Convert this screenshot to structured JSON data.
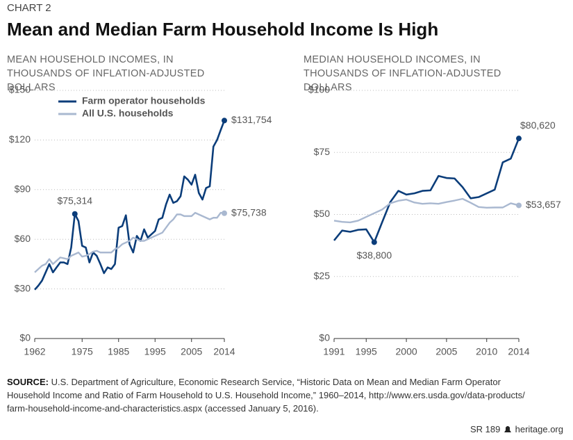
{
  "header": {
    "label": "CHART 2",
    "title": "Mean and Median Farm Household Income Is High"
  },
  "chart_data": [
    {
      "type": "line",
      "subtitle": "MEAN HOUSEHOLD INCOMES, IN THOUSANDS OF INFLATION-ADJUSTED DOLLARS",
      "x": [
        1962,
        1963,
        1964,
        1965,
        1966,
        1967,
        1968,
        1969,
        1970,
        1971,
        1972,
        1973,
        1974,
        1975,
        1976,
        1977,
        1978,
        1979,
        1980,
        1981,
        1982,
        1983,
        1984,
        1985,
        1986,
        1987,
        1988,
        1989,
        1990,
        1991,
        1992,
        1993,
        1994,
        1995,
        1996,
        1997,
        1998,
        1999,
        2000,
        2001,
        2002,
        2003,
        2004,
        2005,
        2006,
        2007,
        2008,
        2009,
        2010,
        2011,
        2012,
        2013,
        2014
      ],
      "series": [
        {
          "name": "Farm operator households",
          "color": "#0b3d7a",
          "values": [
            29.5,
            32,
            35,
            40,
            45,
            40,
            43,
            46,
            46,
            45,
            55,
            75.314,
            71,
            56,
            55,
            46,
            52,
            50,
            45,
            39.5,
            43,
            42,
            45,
            67,
            68,
            74.5,
            57,
            52,
            62,
            59,
            66,
            61,
            63,
            65,
            72,
            73,
            81,
            87,
            82,
            83,
            86,
            98,
            96,
            93,
            99,
            88,
            84,
            91,
            92,
            116,
            120,
            126,
            131.754
          ]
        },
        {
          "name": "All U.S. households",
          "color": "#a9b8d0",
          "values": [
            40,
            42,
            44,
            45,
            48,
            45,
            47,
            49,
            48.5,
            48,
            50,
            51,
            52,
            49.5,
            50,
            51,
            52.5,
            53,
            52,
            52,
            52,
            52,
            54,
            55,
            57,
            58,
            59,
            61,
            60,
            59,
            59,
            60,
            61,
            62,
            63,
            64,
            67,
            70,
            72,
            75,
            75,
            74,
            74,
            74,
            76,
            75,
            74,
            73,
            72,
            73,
            73,
            76,
            75.738
          ]
        }
      ],
      "xlim": [
        1962,
        2014
      ],
      "xticks": [
        1962,
        1975,
        1985,
        1995,
        2005,
        2014
      ],
      "ylim": [
        0,
        150
      ],
      "yticks": [
        {
          "value": 0,
          "label": "$0"
        },
        {
          "value": 30,
          "label": "$30"
        },
        {
          "value": 60,
          "label": "$60"
        },
        {
          "value": 90,
          "label": "$90"
        },
        {
          "value": 120,
          "label": "$120"
        },
        {
          "value": 150,
          "label": "$150"
        }
      ],
      "grid": true,
      "legend": "upper left",
      "annotations": [
        {
          "x": 1973,
          "y": 75.314,
          "label": "$75,314",
          "series": 0,
          "position": "above"
        },
        {
          "x": 2014,
          "y": 131.754,
          "label": "$131,754",
          "series": 0,
          "position": "right"
        },
        {
          "x": 2014,
          "y": 75.738,
          "label": "$75,738",
          "series": 1,
          "position": "right"
        }
      ]
    },
    {
      "type": "line",
      "subtitle": "MEDIAN HOUSEHOLD INCOMES, IN THOUSANDS OF INFLATION-ADJUSTED DOLLARS",
      "x": [
        1991,
        1992,
        1993,
        1994,
        1995,
        1996,
        1997,
        1998,
        1999,
        2000,
        2001,
        2002,
        2003,
        2004,
        2005,
        2006,
        2007,
        2008,
        2009,
        2010,
        2011,
        2012,
        2013,
        2014
      ],
      "series": [
        {
          "color": "#0b3d7a",
          "values": [
            39.5,
            43.5,
            43,
            43.8,
            44,
            38.8,
            47,
            55,
            59.5,
            58,
            58.5,
            59.5,
            59.7,
            65.5,
            64.7,
            64.5,
            61,
            56.5,
            57,
            58.5,
            60,
            71,
            72.5,
            80.62
          ]
        },
        {
          "color": "#a9b8d0",
          "values": [
            47.5,
            47,
            46.8,
            47.5,
            49,
            50.5,
            52,
            54.5,
            55.5,
            56,
            54.8,
            54.3,
            54.5,
            54.3,
            55,
            55.6,
            56.3,
            54.7,
            53,
            52.7,
            52.8,
            52.8,
            54.5,
            53.657
          ]
        }
      ],
      "xlim": [
        1991,
        2014
      ],
      "xticks": [
        1991,
        1995,
        2000,
        2005,
        2010,
        2014
      ],
      "ylim": [
        0,
        100
      ],
      "yticks": [
        {
          "value": 0,
          "label": "$0"
        },
        {
          "value": 25,
          "label": "$25"
        },
        {
          "value": 50,
          "label": "$50"
        },
        {
          "value": 75,
          "label": "$75"
        },
        {
          "value": 100,
          "label": "$100"
        }
      ],
      "grid": true,
      "annotations": [
        {
          "x": 1996,
          "y": 38.8,
          "label": "$38,800",
          "series": 0,
          "position": "below"
        },
        {
          "x": 2014,
          "y": 80.62,
          "label": "$80,620",
          "series": 0,
          "position": "above"
        },
        {
          "x": 2014,
          "y": 53.657,
          "label": "$53,657",
          "series": 1,
          "position": "right"
        }
      ]
    }
  ],
  "source": {
    "label": "SOURCE:",
    "text": "U.S. Department of Agriculture, Economic Research Service, “Historic Data on Mean and Median Farm Operator Household Income and Ratio of Farm Household to U.S. Household Income,” 1960–2014, http://www.ers.usda.gov/data-products/ farm-household-income-and-characteristics.aspx (accessed January 5, 2016)."
  },
  "footer": {
    "code": "SR 189",
    "site": "heritage.org"
  }
}
